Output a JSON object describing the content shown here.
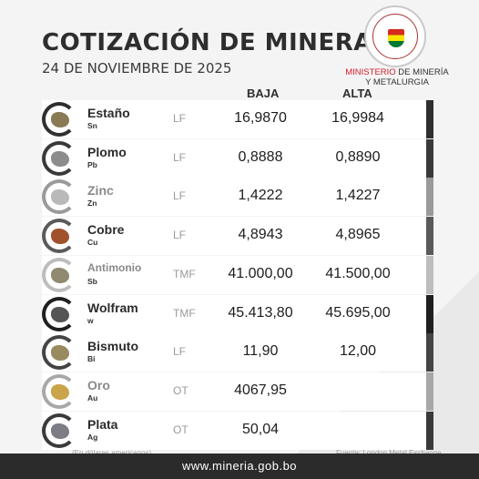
{
  "header": {
    "title": "COTIZACIÓN DE MINERALES",
    "date": "24 DE NOVIEMBRE DE 2025"
  },
  "ministry": {
    "line1_red": "MINISTERIO",
    "line1_rest": " DE MINERÍA",
    "line2": "Y METALURGIA"
  },
  "columns": {
    "low": "BAJA",
    "high": "ALTA"
  },
  "minerals": [
    {
      "name": "Estaño",
      "symbol": "Sn",
      "unit": "LF",
      "low": "16,9870",
      "high": "16,9984",
      "accent": "#2f2f2f",
      "rock": "#8a7a55"
    },
    {
      "name": "Plomo",
      "symbol": "Pb",
      "unit": "LF",
      "low": "0,8888",
      "high": "0,8890",
      "accent": "#3a3a3a",
      "rock": "#8c8c8c"
    },
    {
      "name": "Zinc",
      "symbol": "Zn",
      "unit": "LF",
      "low": "1,4222",
      "high": "1,4227",
      "accent": "#9a9a9a",
      "rock": "#b9b9b9"
    },
    {
      "name": "Cobre",
      "symbol": "Cu",
      "unit": "LF",
      "low": "4,8943",
      "high": "4,8965",
      "accent": "#5a5a5a",
      "rock": "#a0522d"
    },
    {
      "name": "Antimonio",
      "symbol": "Sb",
      "unit": "TMF",
      "low": "41.000,00",
      "high": "41.500,00",
      "accent": "#bdbdbd",
      "rock": "#8f8a70"
    },
    {
      "name": "Wolfram",
      "symbol": "w",
      "unit": "TMF",
      "low": "45.413,80",
      "high": "45.695,00",
      "accent": "#1f1f1f",
      "rock": "#555555"
    },
    {
      "name": "Bismuto",
      "symbol": "Bi",
      "unit": "LF",
      "low": "11,90",
      "high": "12,00",
      "accent": "#444444",
      "rock": "#9a8a60"
    },
    {
      "name": "Oro",
      "symbol": "Au",
      "unit": "OT",
      "low": "4067,95",
      "high": "",
      "accent": "#a8a8a8",
      "rock": "#c9a44a"
    },
    {
      "name": "Plata",
      "symbol": "Ag",
      "unit": "OT",
      "low": "50,04",
      "high": "",
      "accent": "#3a3a3a",
      "rock": "#7d7d85"
    }
  ],
  "notes": {
    "currency": "(En dólares americanos)",
    "source": "Fuente: London Metal Exchange"
  },
  "footer": {
    "url": "www.mineria.gob.bo"
  }
}
